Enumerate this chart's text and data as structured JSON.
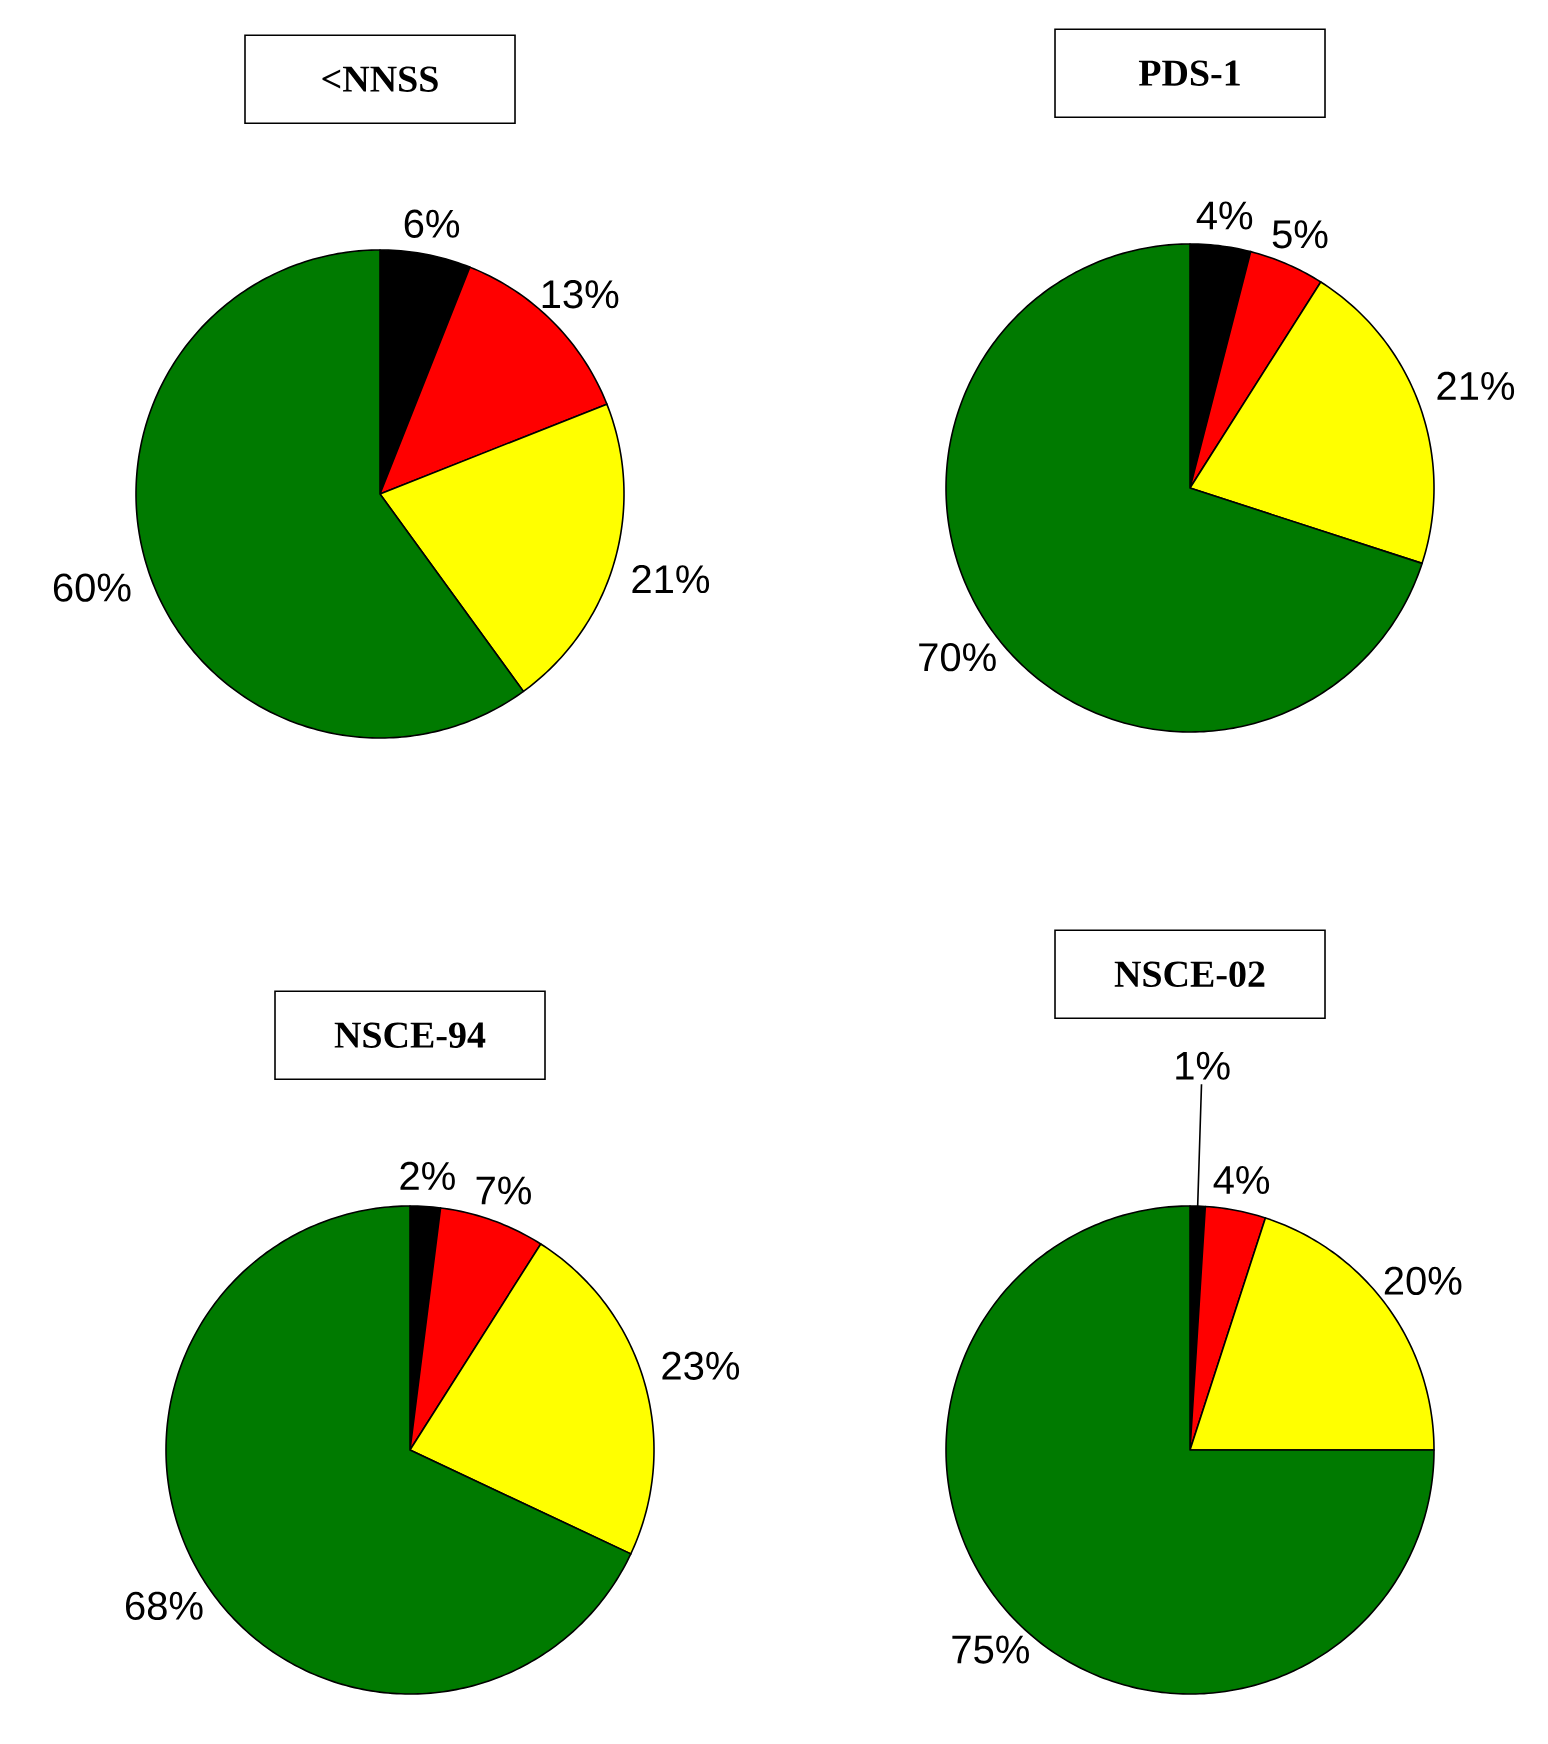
{
  "chart_data": [
    {
      "type": "pie",
      "title": "<NNSS",
      "categories": [
        null,
        null,
        null,
        null
      ],
      "values": [
        6,
        13,
        21,
        60
      ],
      "value_labels": [
        "6%",
        "13%",
        "21%",
        "60%"
      ],
      "colors": [
        "#000000",
        "#ff0000",
        "#ffff00",
        "#007a00"
      ]
    },
    {
      "type": "pie",
      "title": "PDS-1",
      "categories": [
        null,
        null,
        null,
        null
      ],
      "values": [
        4,
        5,
        21,
        70
      ],
      "value_labels": [
        "4%",
        "5%",
        "21%",
        "70%"
      ],
      "colors": [
        "#000000",
        "#ff0000",
        "#ffff00",
        "#007a00"
      ]
    },
    {
      "type": "pie",
      "title": "NSCE-94",
      "categories": [
        null,
        null,
        null,
        null
      ],
      "values": [
        2,
        7,
        23,
        68
      ],
      "value_labels": [
        "2%",
        "7%",
        "23%",
        "68%"
      ],
      "colors": [
        "#000000",
        "#ff0000",
        "#ffff00",
        "#007a00"
      ]
    },
    {
      "type": "pie",
      "title": "NSCE-02",
      "categories": [
        null,
        null,
        null,
        null
      ],
      "values": [
        1,
        4,
        20,
        75
      ],
      "value_labels": [
        "1%",
        "4%",
        "20%",
        "75%"
      ],
      "colors": [
        "#000000",
        "#ff0000",
        "#ffff00",
        "#007a00"
      ]
    }
  ]
}
